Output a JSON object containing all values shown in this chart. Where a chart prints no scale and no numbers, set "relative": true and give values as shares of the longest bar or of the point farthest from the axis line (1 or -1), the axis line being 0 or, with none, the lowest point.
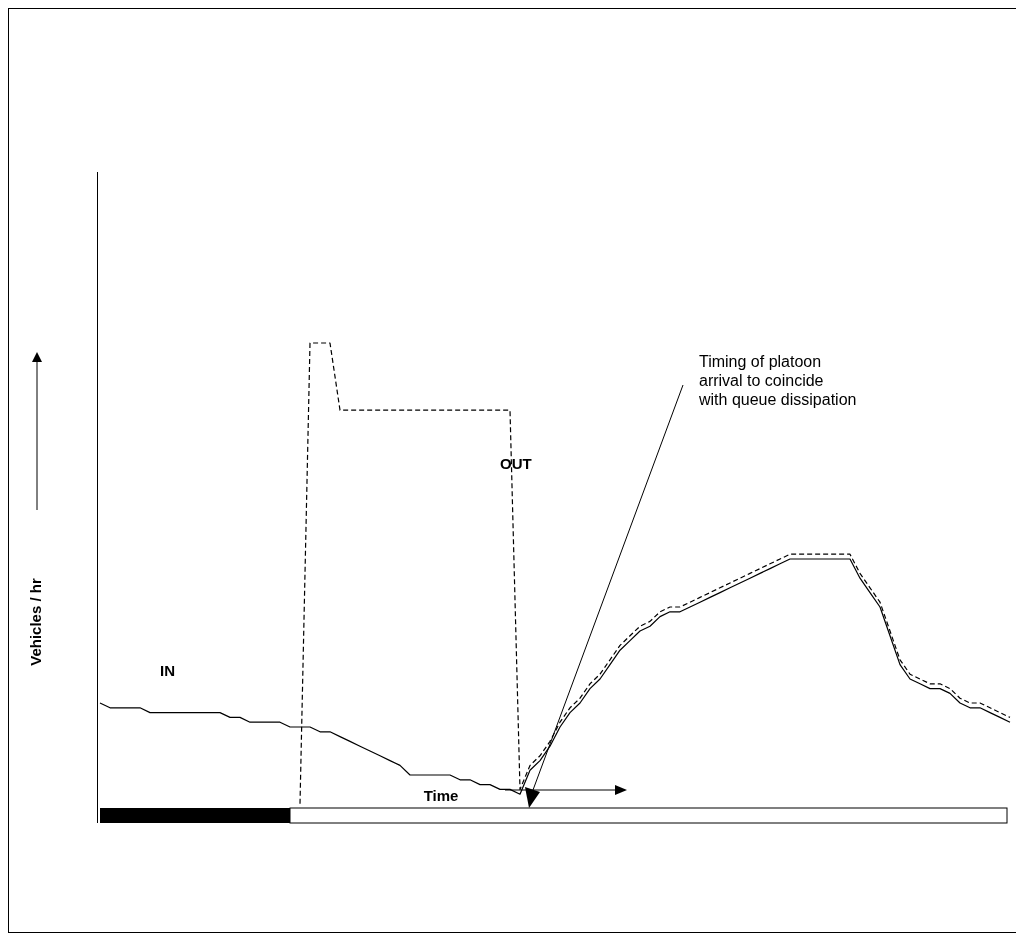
{
  "chart_data": {
    "type": "line",
    "relative": true,
    "xlabel": "Time",
    "ylabel": "Vehicles / hr",
    "grid": false,
    "legend": false,
    "marker": "none",
    "annotations": [
      "Timing of platoon\narrival to coincide\nwith queue dissipation"
    ],
    "categories": [
      null,
      null,
      null,
      null,
      null,
      null,
      null,
      null,
      null,
      null,
      null,
      null,
      null,
      null,
      null,
      null,
      null,
      null,
      null,
      null,
      null,
      null,
      null,
      null,
      null,
      null,
      null,
      null,
      null,
      null,
      null,
      null,
      null,
      null,
      null,
      null,
      null,
      null,
      null,
      null,
      null,
      null,
      null,
      null,
      null,
      null,
      null,
      null,
      null,
      null,
      null,
      null,
      null,
      null,
      null,
      null,
      null,
      null,
      null,
      null,
      null,
      null,
      null,
      null,
      null,
      null,
      null,
      null,
      null,
      null,
      null,
      null,
      null,
      null,
      null,
      null,
      null,
      null,
      null,
      null,
      null,
      null,
      null,
      null,
      null,
      null,
      null,
      null,
      null,
      null,
      null,
      null
    ],
    "series": [
      {
        "name": "IN",
        "color": "#000000",
        "line_style": "solid",
        "values": [
          0.25,
          0.24,
          0.24,
          0.24,
          0.24,
          0.23,
          0.23,
          0.23,
          0.23,
          0.23,
          0.23,
          0.23,
          0.23,
          0.22,
          0.22,
          0.21,
          0.21,
          0.21,
          0.21,
          0.2,
          0.2,
          0.2,
          0.19,
          0.19,
          0.18,
          0.17,
          0.16,
          0.15,
          0.14,
          0.13,
          0.12,
          0.1,
          0.1,
          0.1,
          0.1,
          0.1,
          0.09,
          0.09,
          0.08,
          0.08,
          0.07,
          0.07,
          0.06,
          0.11,
          0.13,
          0.16,
          0.2,
          0.23,
          0.25,
          0.28,
          0.3,
          0.33,
          0.36,
          0.38,
          0.4,
          0.41,
          0.43,
          0.44,
          0.44,
          0.45,
          0.46,
          0.47,
          0.48,
          0.49,
          0.5,
          0.51,
          0.52,
          0.53,
          0.54,
          0.55,
          0.55,
          0.55,
          0.55,
          0.55,
          0.55,
          0.55,
          0.51,
          0.48,
          0.45,
          0.39,
          0.33,
          0.3,
          0.29,
          0.28,
          0.28,
          0.27,
          0.25,
          0.24,
          0.24,
          0.23,
          0.22,
          0.21
        ]
      },
      {
        "name": "OUT",
        "color": "#000000",
        "line_style": "dashed",
        "values": [
          null,
          null,
          null,
          null,
          null,
          null,
          null,
          null,
          null,
          null,
          null,
          null,
          null,
          null,
          null,
          null,
          null,
          null,
          null,
          null,
          0.04,
          1.0,
          1.0,
          1.0,
          0.86,
          0.86,
          0.86,
          0.86,
          0.86,
          0.86,
          0.86,
          0.86,
          0.86,
          0.86,
          0.86,
          0.86,
          0.86,
          0.86,
          0.86,
          0.86,
          0.86,
          0.86,
          0.07,
          0.12,
          0.14,
          0.17,
          0.21,
          0.24,
          0.26,
          0.29,
          0.31,
          0.34,
          0.37,
          0.39,
          0.41,
          0.42,
          0.44,
          0.45,
          0.45,
          0.46,
          0.47,
          0.48,
          0.49,
          0.5,
          0.51,
          0.52,
          0.53,
          0.54,
          0.55,
          0.56,
          0.56,
          0.56,
          0.56,
          0.56,
          0.56,
          0.56,
          0.52,
          0.49,
          0.46,
          0.4,
          0.34,
          0.31,
          0.3,
          0.29,
          0.29,
          0.28,
          0.26,
          0.25,
          0.25,
          0.24,
          0.23,
          0.22
        ]
      }
    ]
  }
}
